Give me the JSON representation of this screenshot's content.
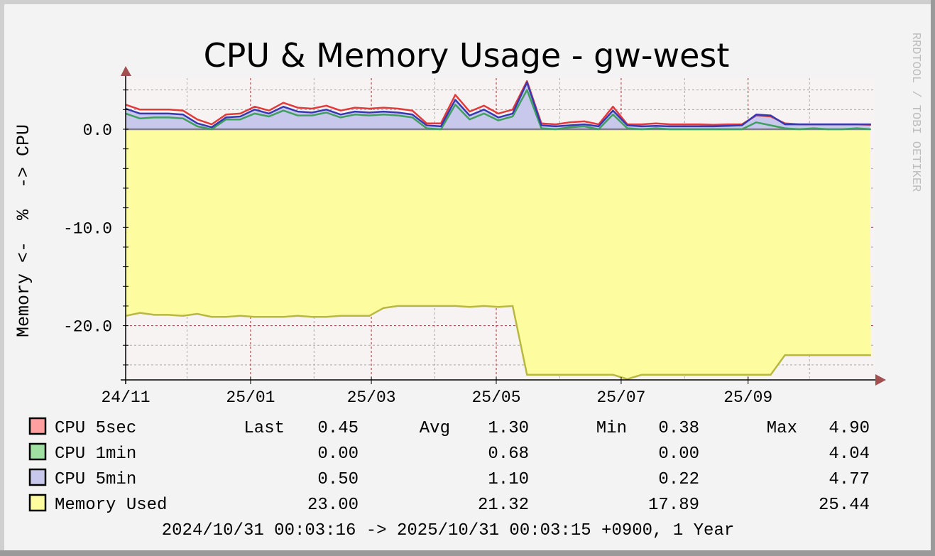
{
  "chart_data": {
    "type": "area",
    "title": "CPU & Memory Usage - gw-west",
    "ylabel": "Memory <-  %  -> CPU",
    "watermark": "RRDTOOL / TOBI OETIKER",
    "ylim": [
      -25.6,
      5.2
    ],
    "y_ticks": [
      {
        "value": 0,
        "label": "0.0"
      },
      {
        "value": -10,
        "label": "-10.0"
      },
      {
        "value": -20,
        "label": "-20.0"
      }
    ],
    "x_ticks": [
      {
        "date": "2024-11-01",
        "label": "24/11"
      },
      {
        "date": "2025-01-01",
        "label": "25/01"
      },
      {
        "date": "2025-03-01",
        "label": "25/03"
      },
      {
        "date": "2025-05-01",
        "label": "25/05"
      },
      {
        "date": "2025-07-01",
        "label": "25/07"
      },
      {
        "date": "2025-09-01",
        "label": "25/09"
      }
    ],
    "x_minor": [
      "2024-12-01",
      "2025-02-01",
      "2025-04-01",
      "2025-06-01",
      "2025-08-01",
      "2025-10-01"
    ],
    "grid": true,
    "x": [
      "2024-11-01",
      "2024-11-08",
      "2024-11-15",
      "2024-11-22",
      "2024-11-29",
      "2024-12-06",
      "2024-12-13",
      "2024-12-20",
      "2024-12-27",
      "2025-01-03",
      "2025-01-10",
      "2025-01-17",
      "2025-01-24",
      "2025-01-31",
      "2025-02-07",
      "2025-02-14",
      "2025-02-21",
      "2025-02-28",
      "2025-03-07",
      "2025-03-14",
      "2025-03-21",
      "2025-03-28",
      "2025-04-04",
      "2025-04-11",
      "2025-04-18",
      "2025-04-25",
      "2025-05-02",
      "2025-05-09",
      "2025-05-16",
      "2025-05-23",
      "2025-05-30",
      "2025-06-06",
      "2025-06-13",
      "2025-06-20",
      "2025-06-27",
      "2025-07-04",
      "2025-07-11",
      "2025-07-18",
      "2025-07-25",
      "2025-08-01",
      "2025-08-08",
      "2025-08-15",
      "2025-08-22",
      "2025-08-29",
      "2025-09-05",
      "2025-09-12",
      "2025-09-19",
      "2025-09-26",
      "2025-10-03",
      "2025-10-10",
      "2025-10-17",
      "2025-10-24",
      "2025-10-31"
    ],
    "series": [
      {
        "name": "CPU 5sec",
        "color": "#e03a3a",
        "swatch": "#ff9f9f",
        "values": [
          2.5,
          2.0,
          2.0,
          2.0,
          1.9,
          1.0,
          0.5,
          1.5,
          1.6,
          2.3,
          1.9,
          2.7,
          2.2,
          2.1,
          2.4,
          1.9,
          2.2,
          2.1,
          2.2,
          2.1,
          1.9,
          0.6,
          0.6,
          3.5,
          1.8,
          2.4,
          1.6,
          2.0,
          4.9,
          0.6,
          0.5,
          0.7,
          0.8,
          0.5,
          2.3,
          0.5,
          0.5,
          0.6,
          0.5,
          0.5,
          0.5,
          0.45,
          0.5,
          0.5,
          1.4,
          1.3,
          0.6,
          0.5,
          0.5,
          0.5,
          0.5,
          0.5,
          0.45
        ]
      },
      {
        "name": "CPU 1min",
        "color": "#3f9f5f",
        "swatch": "#a0e0a0",
        "values": [
          1.6,
          1.1,
          1.2,
          1.2,
          1.1,
          0.3,
          0.0,
          1.0,
          1.0,
          1.6,
          1.3,
          1.9,
          1.4,
          1.4,
          1.7,
          1.2,
          1.5,
          1.4,
          1.5,
          1.4,
          1.2,
          0.1,
          0.0,
          2.5,
          1.0,
          1.6,
          0.9,
          1.3,
          4.0,
          0.1,
          0.0,
          0.2,
          0.3,
          0.0,
          1.5,
          0.1,
          0.0,
          0.1,
          0.0,
          0.0,
          0.0,
          0.0,
          0.0,
          0.0,
          0.7,
          0.4,
          0.1,
          0.0,
          0.1,
          0.0,
          0.0,
          0.1,
          0.0
        ]
      },
      {
        "name": "CPU 5min",
        "color": "#3838b0",
        "swatch": "#c8c8ec",
        "values": [
          2.1,
          1.6,
          1.6,
          1.6,
          1.5,
          0.6,
          0.2,
          1.2,
          1.3,
          2.0,
          1.6,
          2.3,
          1.8,
          1.7,
          2.0,
          1.5,
          1.8,
          1.7,
          1.8,
          1.7,
          1.5,
          0.4,
          0.3,
          3.0,
          1.4,
          2.0,
          1.2,
          1.6,
          4.77,
          0.4,
          0.3,
          0.4,
          0.5,
          0.3,
          1.9,
          0.4,
          0.3,
          0.35,
          0.3,
          0.3,
          0.3,
          0.3,
          0.35,
          0.4,
          1.5,
          1.4,
          0.5,
          0.5,
          0.5,
          0.5,
          0.5,
          0.5,
          0.5
        ]
      },
      {
        "name": "Memory Used",
        "color": "#b8b840",
        "swatch": "#fdfd9f",
        "negative": true,
        "values": [
          19.0,
          18.7,
          18.9,
          18.9,
          19.0,
          18.8,
          19.1,
          19.1,
          19.0,
          19.1,
          19.1,
          19.1,
          19.0,
          19.1,
          19.1,
          19.0,
          19.0,
          19.0,
          18.2,
          18.0,
          18.0,
          18.0,
          18.0,
          18.0,
          18.1,
          18.0,
          18.1,
          18.0,
          25.0,
          25.0,
          25.0,
          25.0,
          25.0,
          25.0,
          25.0,
          25.44,
          25.0,
          25.0,
          25.0,
          25.0,
          25.0,
          25.0,
          25.0,
          25.0,
          25.0,
          25.0,
          23.0,
          23.0,
          23.0,
          23.0,
          23.0,
          23.0,
          23.0
        ]
      }
    ],
    "legend": {
      "headers": {
        "last": "Last",
        "avg": "Avg",
        "min": "Min",
        "max": "Max"
      },
      "rows": [
        {
          "label": "CPU 5sec",
          "last": "0.45",
          "avg": "1.30",
          "min": "0.38",
          "max": "4.90"
        },
        {
          "label": "CPU 1min",
          "last": "0.00",
          "avg": "0.68",
          "min": "0.00",
          "max": "4.04"
        },
        {
          "label": "CPU 5min",
          "last": "0.50",
          "avg": "1.10",
          "min": "0.22",
          "max": "4.77"
        },
        {
          "label": "Memory Used",
          "last": "23.00",
          "avg": "21.32",
          "min": "17.89",
          "max": "25.44"
        }
      ]
    },
    "period": "2024/10/31 00:03:16 -> 2025/10/31 00:03:15 +0900, 1 Year"
  }
}
